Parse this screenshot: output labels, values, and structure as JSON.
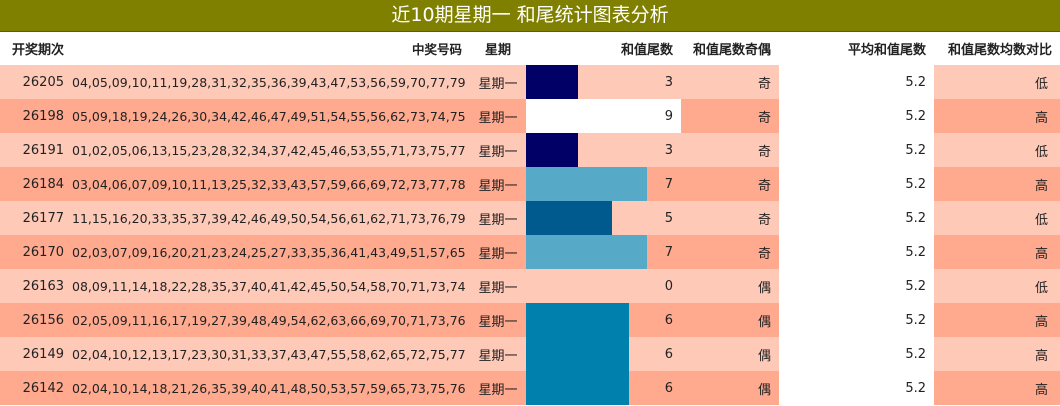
{
  "title": "近10期星期一 和尾统计图表分析",
  "headers": {
    "issue": "开奖期次",
    "numbers": "中奖号码",
    "weekday": "星期",
    "tail": "和值尾数",
    "odd_even": "和值尾数奇偶",
    "avg_tail": "平均和值尾数",
    "compare": "和值尾数均数对比"
  },
  "rows": [
    {
      "issue": "26205",
      "numbers": "04,05,09,10,11,19,28,31,32,35,36,39,43,47,53,56,59,70,77,79",
      "weekday": "星期一",
      "tail": "3",
      "tail_value": 3,
      "bar_color": "#000066",
      "odd_even": "奇",
      "avg": "5.2",
      "compare": "低"
    },
    {
      "issue": "26198",
      "numbers": "05,09,18,19,24,26,30,34,42,46,47,49,51,54,55,56,62,73,74,75",
      "weekday": "星期一",
      "tail": "9",
      "tail_value": 9,
      "bar_color": "#ffffff",
      "odd_even": "奇",
      "avg": "5.2",
      "compare": "高"
    },
    {
      "issue": "26191",
      "numbers": "01,02,05,06,13,15,23,28,32,34,37,42,45,46,53,55,71,73,75,77",
      "weekday": "星期一",
      "tail": "3",
      "tail_value": 3,
      "bar_color": "#000066",
      "odd_even": "奇",
      "avg": "5.2",
      "compare": "低"
    },
    {
      "issue": "26184",
      "numbers": "03,04,06,07,09,10,11,13,25,32,33,43,57,59,66,69,72,73,77,78",
      "weekday": "星期一",
      "tail": "7",
      "tail_value": 7,
      "bar_color": "#56aac8",
      "odd_even": "奇",
      "avg": "5.2",
      "compare": "高"
    },
    {
      "issue": "26177",
      "numbers": "11,15,16,20,33,35,37,39,42,46,49,50,54,56,61,62,71,73,76,79",
      "weekday": "星期一",
      "tail": "5",
      "tail_value": 5,
      "bar_color": "#005a8e",
      "odd_even": "奇",
      "avg": "5.2",
      "compare": "低"
    },
    {
      "issue": "26170",
      "numbers": "02,03,07,09,16,20,21,23,24,25,27,33,35,36,41,43,49,51,57,65",
      "weekday": "星期一",
      "tail": "7",
      "tail_value": 7,
      "bar_color": "#56aac8",
      "odd_even": "奇",
      "avg": "5.2",
      "compare": "高"
    },
    {
      "issue": "26163",
      "numbers": "08,09,11,14,18,22,28,35,37,40,41,42,45,50,54,58,70,71,73,74",
      "weekday": "星期一",
      "tail": "0",
      "tail_value": 0,
      "bar_color": "#ffffff",
      "odd_even": "偶",
      "avg": "5.2",
      "compare": "低"
    },
    {
      "issue": "26156",
      "numbers": "02,05,09,11,16,17,19,27,39,48,49,54,62,63,66,69,70,71,73,76",
      "weekday": "星期一",
      "tail": "6",
      "tail_value": 6,
      "bar_color": "#0080ad",
      "odd_even": "偶",
      "avg": "5.2",
      "compare": "高"
    },
    {
      "issue": "26149",
      "numbers": "02,04,10,12,13,17,23,30,31,33,37,43,47,55,58,62,65,72,75,77",
      "weekday": "星期一",
      "tail": "6",
      "tail_value": 6,
      "bar_color": "#0080ad",
      "odd_even": "偶",
      "avg": "5.2",
      "compare": "高"
    },
    {
      "issue": "26142",
      "numbers": "02,04,10,14,18,21,26,35,39,40,41,48,50,53,57,59,65,73,75,76",
      "weekday": "星期一",
      "tail": "6",
      "tail_value": 6,
      "bar_color": "#0080ad",
      "odd_even": "偶",
      "avg": "5.2",
      "compare": "高"
    }
  ]
}
